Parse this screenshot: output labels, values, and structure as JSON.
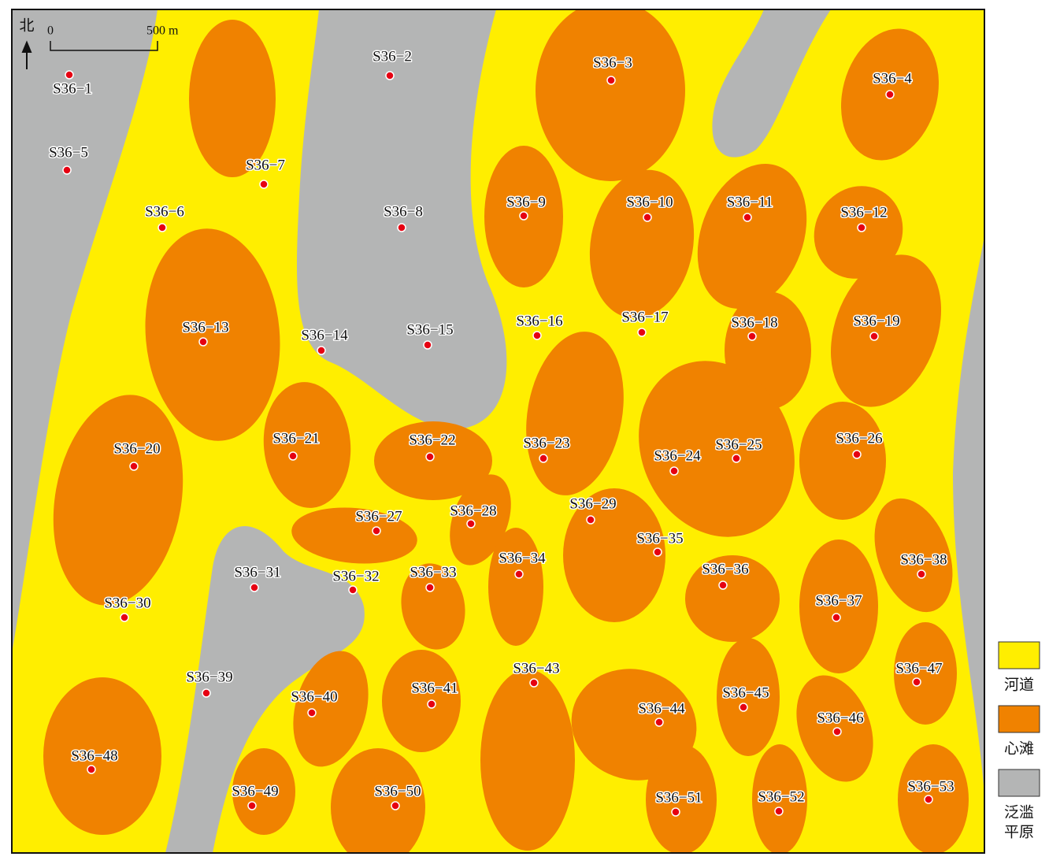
{
  "north": "北",
  "scale": {
    "start": "0",
    "end": "500 m"
  },
  "wells": [
    "S36−1",
    "S36−2",
    "S36−3",
    "S36−4",
    "S36−5",
    "S36−6",
    "S36−7",
    "S36−8",
    "S36−9",
    "S36−10",
    "S36−11",
    "S36−12",
    "S36−13",
    "S36−14",
    "S36−15",
    "S36−16",
    "S36−17",
    "S36−18",
    "S36−19",
    "S36−20",
    "S36−21",
    "S36−22",
    "S36−23",
    "S36−24",
    "S36−25",
    "S36−26",
    "S36−27",
    "S36−28",
    "S36−29",
    "S36−30",
    "S36−31",
    "S36−32",
    "S36−33",
    "S36−34",
    "S36−35",
    "S36−36",
    "S36−37",
    "S36−38",
    "S36−39",
    "S36−40",
    "S36−41",
    "S36−43",
    "S36−44",
    "S36−45",
    "S36−46",
    "S36−47",
    "S36−48",
    "S36−49",
    "S36−50",
    "S36−51",
    "S36−52",
    "S36−53"
  ],
  "legend": [
    {
      "label": [
        "河道"
      ],
      "color": "#ffee00"
    },
    {
      "label": [
        "心滩"
      ],
      "color": "#f08200"
    },
    {
      "label": [
        "泛滥",
        "平原"
      ],
      "color": "#b4b5b5"
    }
  ]
}
